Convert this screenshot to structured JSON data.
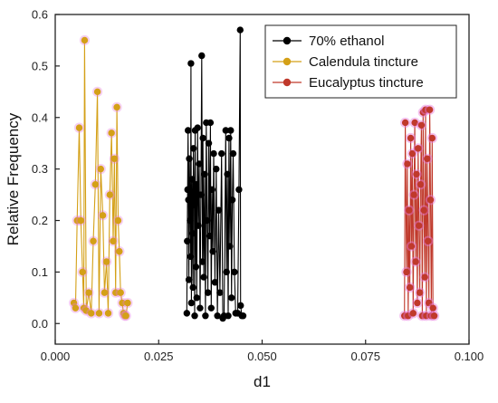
{
  "chart_data": {
    "type": "scatter",
    "xlabel": "d1",
    "ylabel": "Relative Frequency",
    "xlim": [
      0.0,
      0.1
    ],
    "ylim": [
      -0.04,
      0.6
    ],
    "x_ticks": [
      0.0,
      0.025,
      0.05,
      0.075,
      0.1
    ],
    "x_tick_labels": [
      "0.000",
      "0.025",
      "0.050",
      "0.075",
      "0.100"
    ],
    "y_ticks": [
      0.0,
      0.1,
      0.2,
      0.3,
      0.4,
      0.5,
      0.6
    ],
    "y_tick_labels": [
      "0.0",
      "0.1",
      "0.2",
      "0.3",
      "0.4",
      "0.5",
      "0.6"
    ],
    "grid": false,
    "legend_position": "top-right",
    "series": [
      {
        "name": "70% ethanol",
        "color": "#000000",
        "marker": "circle",
        "points": [
          [
            0.0318,
            0.02
          ],
          [
            0.0319,
            0.16
          ],
          [
            0.032,
            0.26
          ],
          [
            0.0321,
            0.375
          ],
          [
            0.0322,
            0.24
          ],
          [
            0.0323,
            0.085
          ],
          [
            0.0324,
            0.32
          ],
          [
            0.0326,
            0.2
          ],
          [
            0.0327,
            0.13
          ],
          [
            0.0328,
            0.505
          ],
          [
            0.0329,
            0.04
          ],
          [
            0.0331,
            0.28
          ],
          [
            0.0332,
            0.175
          ],
          [
            0.0333,
            0.07
          ],
          [
            0.0334,
            0.34
          ],
          [
            0.0336,
            0.23
          ],
          [
            0.0337,
            0.015
          ],
          [
            0.0338,
            0.375
          ],
          [
            0.034,
            0.11
          ],
          [
            0.0341,
            0.27
          ],
          [
            0.0342,
            0.05
          ],
          [
            0.0344,
            0.38
          ],
          [
            0.0346,
            0.19
          ],
          [
            0.0348,
            0.31
          ],
          [
            0.035,
            0.03
          ],
          [
            0.0352,
            0.25
          ],
          [
            0.0354,
            0.52
          ],
          [
            0.0356,
            0.12
          ],
          [
            0.0357,
            0.36
          ],
          [
            0.0359,
            0.09
          ],
          [
            0.0361,
            0.29
          ],
          [
            0.0363,
            0.015
          ],
          [
            0.0365,
            0.39
          ],
          [
            0.0367,
            0.2
          ],
          [
            0.0369,
            0.06
          ],
          [
            0.0371,
            0.35
          ],
          [
            0.0373,
            0.17
          ],
          [
            0.0375,
            0.39
          ],
          [
            0.0377,
            0.03
          ],
          [
            0.0379,
            0.26
          ],
          [
            0.0381,
            0.14
          ],
          [
            0.0383,
            0.33
          ],
          [
            0.0386,
            0.08
          ],
          [
            0.0389,
            0.3
          ],
          [
            0.0392,
            0.015
          ],
          [
            0.0395,
            0.22
          ],
          [
            0.0398,
            0.06
          ],
          [
            0.0402,
            0.33
          ],
          [
            0.0405,
            0.01
          ],
          [
            0.0408,
            0.015
          ],
          [
            0.0412,
            0.375
          ],
          [
            0.0414,
            0.1
          ],
          [
            0.0416,
            0.29
          ],
          [
            0.0418,
            0.015
          ],
          [
            0.042,
            0.36
          ],
          [
            0.0422,
            0.15
          ],
          [
            0.0424,
            0.375
          ],
          [
            0.0426,
            0.05
          ],
          [
            0.0428,
            0.24
          ],
          [
            0.043,
            0.33
          ],
          [
            0.0433,
            0.1
          ],
          [
            0.0436,
            0.02
          ],
          [
            0.0441,
            0.02
          ],
          [
            0.0444,
            0.26
          ],
          [
            0.0447,
            0.57
          ],
          [
            0.0448,
            0.035
          ],
          [
            0.0451,
            0.015
          ],
          [
            0.0454,
            0.015
          ]
        ]
      },
      {
        "name": "Calendula tincture",
        "color": "#D4A017",
        "marker": "circle",
        "points": [
          [
            0.0045,
            0.04
          ],
          [
            0.0049,
            0.03
          ],
          [
            0.0053,
            0.2
          ],
          [
            0.0058,
            0.38
          ],
          [
            0.0062,
            0.2
          ],
          [
            0.0066,
            0.1
          ],
          [
            0.0069,
            0.03
          ],
          [
            0.0071,
            0.55
          ],
          [
            0.0075,
            0.025
          ],
          [
            0.0081,
            0.06
          ],
          [
            0.0087,
            0.02
          ],
          [
            0.0092,
            0.16
          ],
          [
            0.0097,
            0.27
          ],
          [
            0.0102,
            0.45
          ],
          [
            0.0106,
            0.02
          ],
          [
            0.011,
            0.3
          ],
          [
            0.0115,
            0.21
          ],
          [
            0.0119,
            0.06
          ],
          [
            0.0124,
            0.12
          ],
          [
            0.0128,
            0.02
          ],
          [
            0.0132,
            0.25
          ],
          [
            0.0136,
            0.37
          ],
          [
            0.014,
            0.16
          ],
          [
            0.0143,
            0.32
          ],
          [
            0.0146,
            0.06
          ],
          [
            0.0149,
            0.42
          ],
          [
            0.0152,
            0.2
          ],
          [
            0.0155,
            0.14
          ],
          [
            0.0158,
            0.06
          ],
          [
            0.0162,
            0.04
          ],
          [
            0.0165,
            0.02
          ],
          [
            0.0168,
            0.015
          ],
          [
            0.0171,
            0.015
          ],
          [
            0.0175,
            0.04
          ]
        ]
      },
      {
        "name": "Eucalyptus tincture",
        "color": "#C0392B",
        "marker": "circle",
        "points": [
          [
            0.0844,
            0.015
          ],
          [
            0.0846,
            0.39
          ],
          [
            0.0849,
            0.1
          ],
          [
            0.0851,
            0.31
          ],
          [
            0.0853,
            0.015
          ],
          [
            0.0855,
            0.22
          ],
          [
            0.0857,
            0.07
          ],
          [
            0.0859,
            0.36
          ],
          [
            0.0861,
            0.15
          ],
          [
            0.0863,
            0.33
          ],
          [
            0.0865,
            0.02
          ],
          [
            0.0867,
            0.25
          ],
          [
            0.0869,
            0.39
          ],
          [
            0.0871,
            0.12
          ],
          [
            0.0873,
            0.29
          ],
          [
            0.0875,
            0.04
          ],
          [
            0.0877,
            0.34
          ],
          [
            0.0879,
            0.19
          ],
          [
            0.0881,
            0.06
          ],
          [
            0.0883,
            0.27
          ],
          [
            0.0885,
            0.385
          ],
          [
            0.0887,
            0.015
          ],
          [
            0.0889,
            0.41
          ],
          [
            0.0891,
            0.22
          ],
          [
            0.0893,
            0.09
          ],
          [
            0.0895,
            0.415
          ],
          [
            0.0897,
            0.015
          ],
          [
            0.0899,
            0.32
          ],
          [
            0.0901,
            0.16
          ],
          [
            0.0903,
            0.04
          ],
          [
            0.0905,
            0.415
          ],
          [
            0.0907,
            0.24
          ],
          [
            0.0909,
            0.015
          ],
          [
            0.0911,
            0.36
          ],
          [
            0.0913,
            0.03
          ],
          [
            0.0916,
            0.015
          ]
        ]
      }
    ]
  }
}
